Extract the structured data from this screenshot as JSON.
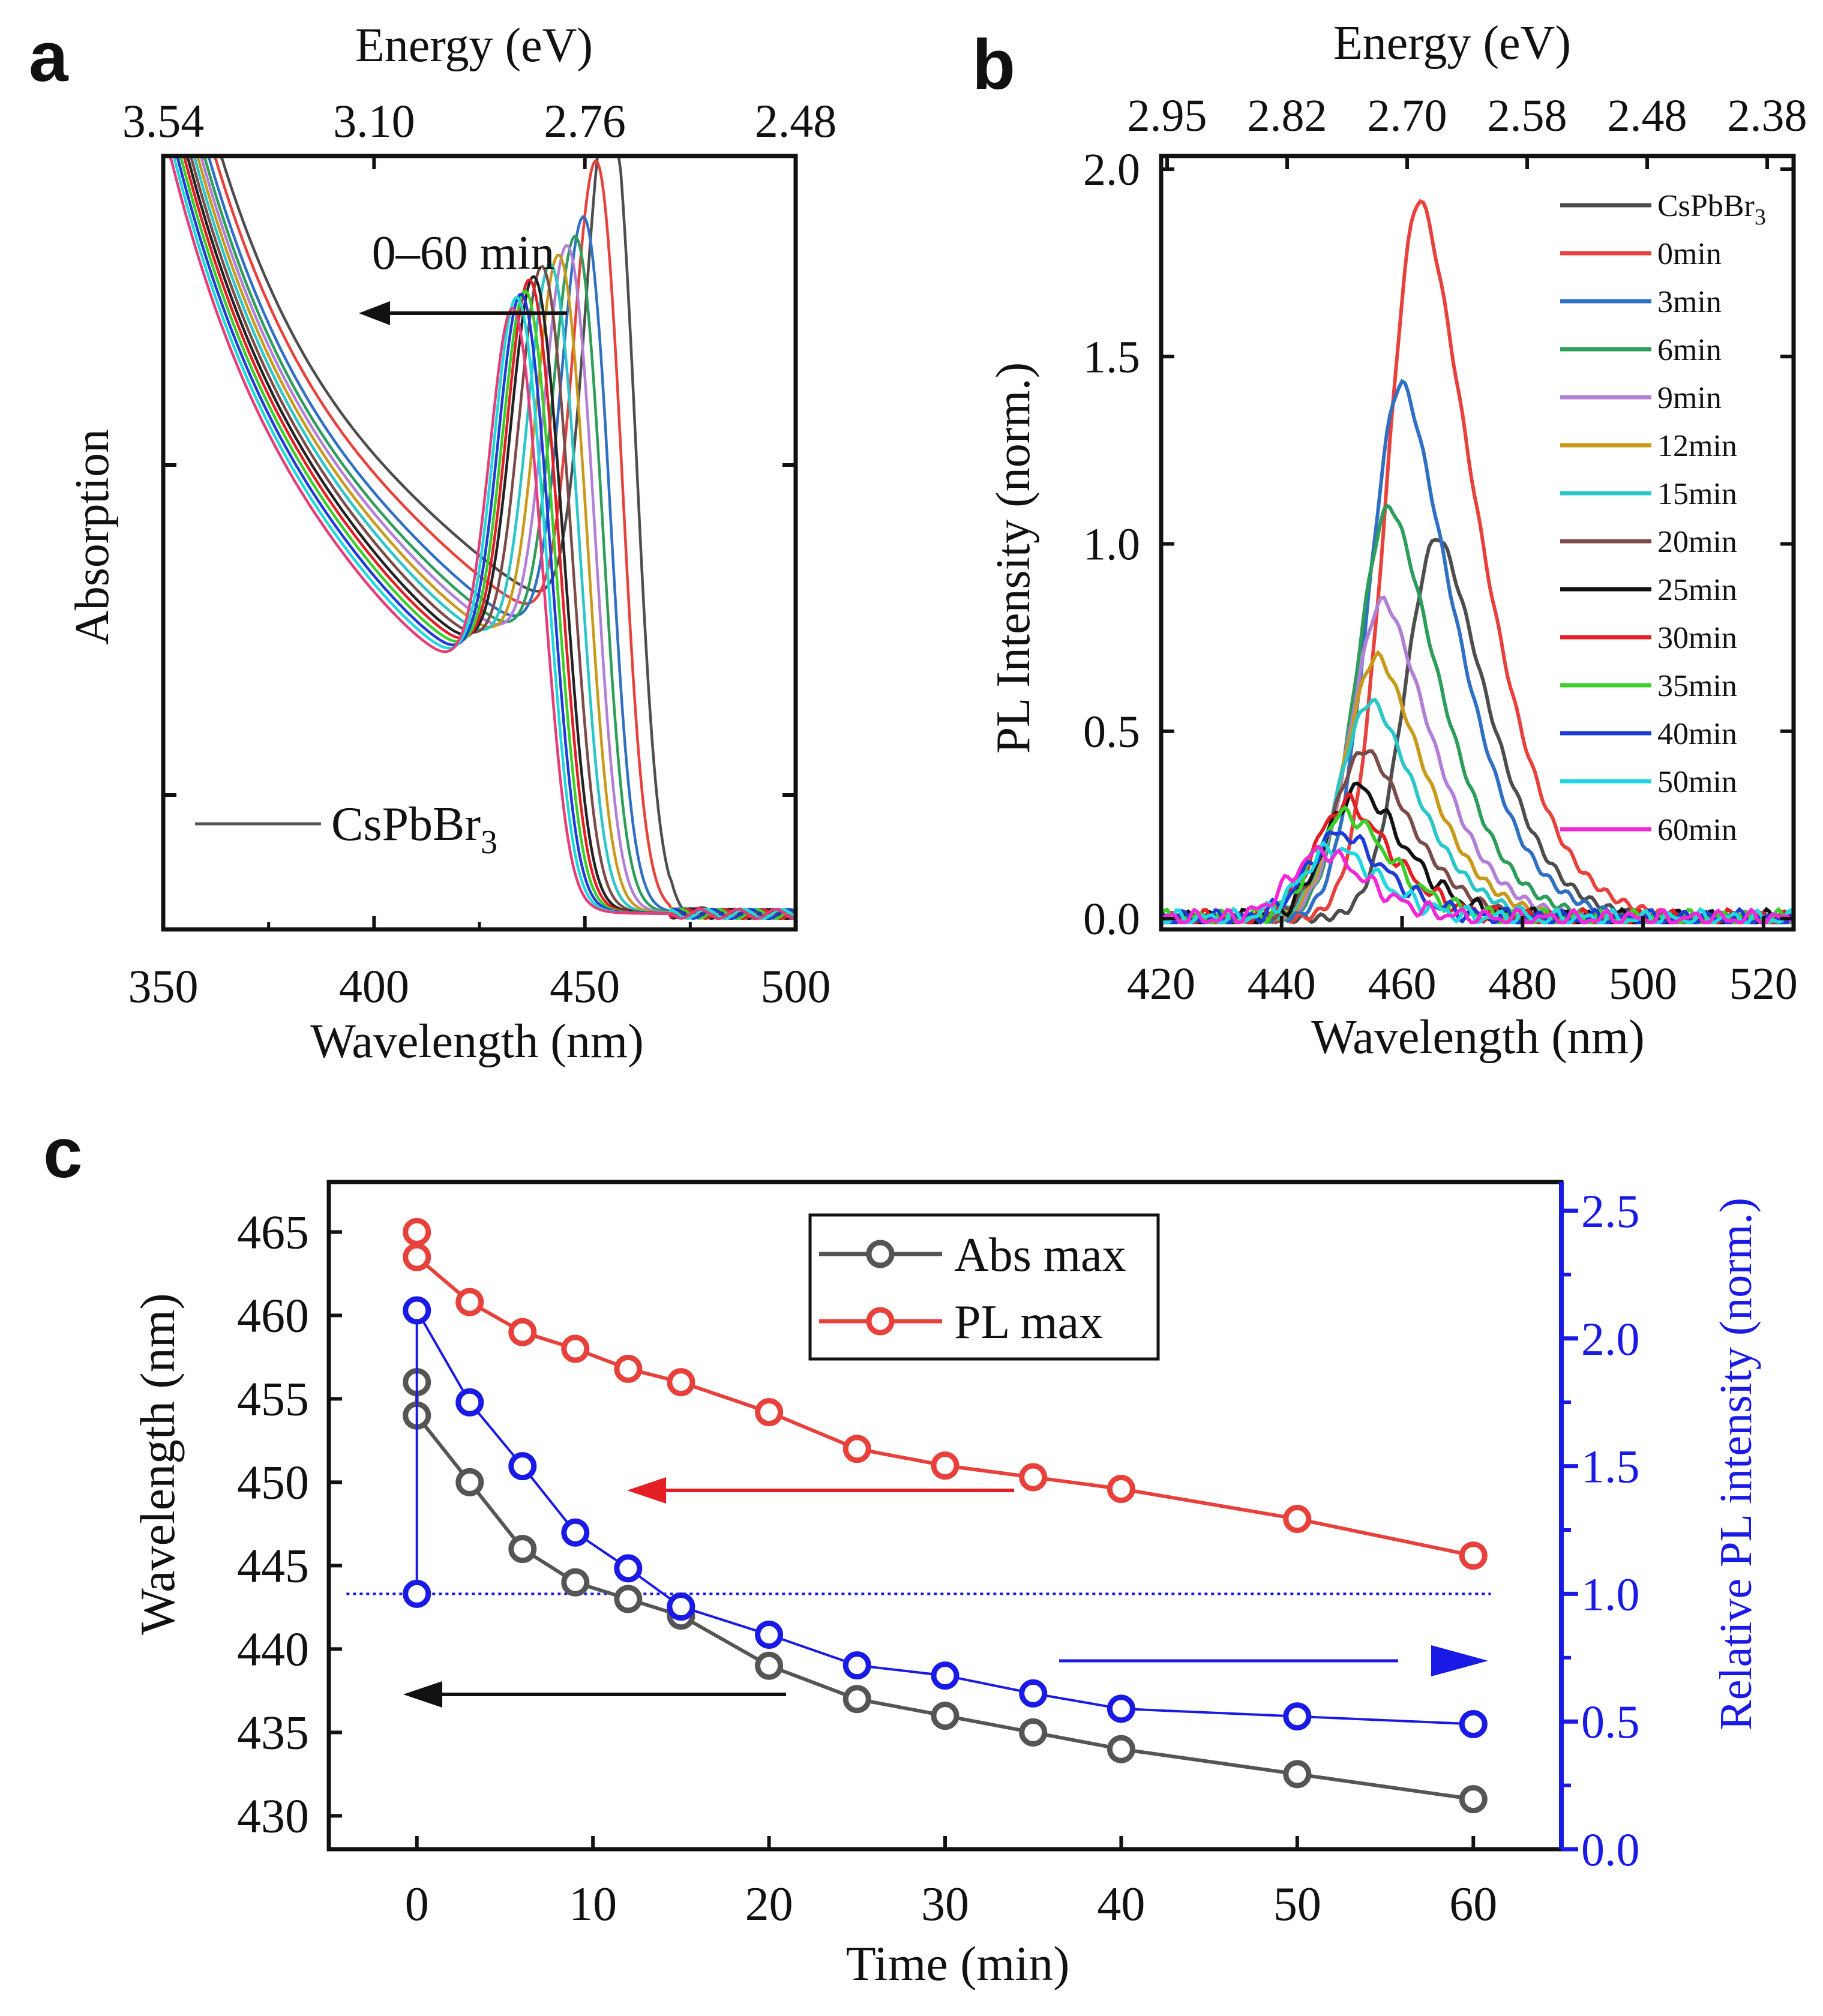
{
  "chart_data": [
    {
      "id": "a",
      "type": "line",
      "panel_label": "a",
      "xlabel": "Wavelength (nm)",
      "ylabel": "Absorption",
      "top_axis_label": "Energy (eV)",
      "xlim": [
        350,
        500
      ],
      "ylim": [
        0,
        1
      ],
      "x_ticks": [
        350,
        400,
        450,
        500
      ],
      "x_tick_labels": [
        "350",
        "400",
        "450",
        "500"
      ],
      "top_tick_labels": [
        "3.54",
        "3.10",
        "2.76",
        "2.48"
      ],
      "y_tick_labels": [],
      "annotation": "0–60 min",
      "legend": {
        "name": "CsPbBr",
        "subscript": "3",
        "color": "#555555"
      },
      "series": [
        {
          "name": "CsPbBr3",
          "color": "#4d4d4d",
          "peak": 456,
          "height": 0.7,
          "dip": 0.4,
          "edge": 463
        },
        {
          "name": "0min",
          "color": "#e8413c",
          "peak": 453,
          "height": 0.63,
          "dip": 0.38,
          "edge": 459.5
        },
        {
          "name": "3min",
          "color": "#2f6fc4",
          "peak": 450,
          "height": 0.57,
          "dip": 0.36,
          "edge": 457
        },
        {
          "name": "6min",
          "color": "#2d9d5a",
          "peak": 448,
          "height": 0.55,
          "dip": 0.35,
          "edge": 455.5
        },
        {
          "name": "9min",
          "color": "#b27fd6",
          "peak": 446,
          "height": 0.54,
          "dip": 0.345,
          "edge": 454
        },
        {
          "name": "12min",
          "color": "#c99a1a",
          "peak": 444,
          "height": 0.53,
          "dip": 0.34,
          "edge": 452.5
        },
        {
          "name": "15min",
          "color": "#2ac6c9",
          "peak": 442,
          "height": 0.52,
          "dip": 0.335,
          "edge": 451
        },
        {
          "name": "20min",
          "color": "#7a4b48",
          "peak": 440,
          "height": 0.52,
          "dip": 0.33,
          "edge": 449.5
        },
        {
          "name": "25min",
          "color": "#222222",
          "peak": 438,
          "height": 0.51,
          "dip": 0.325,
          "edge": 448
        },
        {
          "name": "30min",
          "color": "#e31e24",
          "peak": 437,
          "height": 0.51,
          "dip": 0.32,
          "edge": 447
        },
        {
          "name": "35min",
          "color": "#3ccf2a",
          "peak": 436,
          "height": 0.5,
          "dip": 0.315,
          "edge": 446
        },
        {
          "name": "40min",
          "color": "#1d3bd6",
          "peak": 435,
          "height": 0.5,
          "dip": 0.31,
          "edge": 445
        },
        {
          "name": "50min",
          "color": "#1fd9e0",
          "peak": 434,
          "height": 0.5,
          "dip": 0.305,
          "edge": 444
        },
        {
          "name": "60min",
          "color": "#e63c7a",
          "peak": 433,
          "height": 0.49,
          "dip": 0.3,
          "edge": 443
        }
      ]
    },
    {
      "id": "b",
      "type": "line",
      "panel_label": "b",
      "xlabel": "Wavelength (nm)",
      "ylabel": "PL Intensity (norm.)",
      "top_axis_label": "Energy (eV)",
      "xlim": [
        420,
        525
      ],
      "ylim": [
        0,
        2.0
      ],
      "x_ticks": [
        420,
        440,
        460,
        480,
        500,
        520
      ],
      "x_tick_labels": [
        "420",
        "440",
        "460",
        "480",
        "500",
        "520"
      ],
      "top_tick_labels": [
        "2.95",
        "2.82",
        "2.70",
        "2.58",
        "2.48",
        "2.38"
      ],
      "y_ticks": [
        0,
        0.5,
        1.0,
        1.5,
        2.0
      ],
      "y_tick_labels": [
        "0.0",
        "0.5",
        "1.0",
        "1.5",
        "2.0"
      ],
      "series": [
        {
          "name": "CsPbBr",
          "sub": "3",
          "color": "#4d4d4d",
          "peak": 466,
          "height": 1.02
        },
        {
          "name": "0min",
          "color": "#e8413c",
          "peak": 463,
          "height": 1.92
        },
        {
          "name": "3min",
          "color": "#2f6fc4",
          "peak": 460,
          "height": 1.43
        },
        {
          "name": "6min",
          "color": "#2d9d5a",
          "peak": 458,
          "height": 1.1
        },
        {
          "name": "9min",
          "color": "#b27fd6",
          "peak": 457,
          "height": 0.85
        },
        {
          "name": "12min",
          "color": "#c99a1a",
          "peak": 456,
          "height": 0.7
        },
        {
          "name": "15min",
          "color": "#2ac6c9",
          "peak": 455,
          "height": 0.58
        },
        {
          "name": "20min",
          "color": "#7a4b48",
          "peak": 454,
          "height": 0.45
        },
        {
          "name": "25min",
          "color": "#111111",
          "peak": 453,
          "height": 0.35
        },
        {
          "name": "30min",
          "color": "#e31e24",
          "peak": 451,
          "height": 0.31
        },
        {
          "name": "35min",
          "color": "#3ccf2a",
          "peak": 451,
          "height": 0.28
        },
        {
          "name": "40min",
          "color": "#1d3bd6",
          "peak": 450,
          "height": 0.23
        },
        {
          "name": "50min",
          "color": "#1fd9e0",
          "peak": 449,
          "height": 0.19
        },
        {
          "name": "60min",
          "color": "#f028d8",
          "peak": 447,
          "height": 0.18
        }
      ]
    },
    {
      "id": "c",
      "type": "line",
      "panel_label": "c",
      "xlabel": "Time (min)",
      "ylabel": "Wavelength (nm)",
      "ylabel_right": "Relative PL intensity (norm.)",
      "xlim": [
        -5,
        65
      ],
      "ylim": [
        428,
        468
      ],
      "ylim_right": [
        0,
        2.5
      ],
      "x_ticks": [
        0,
        10,
        20,
        30,
        40,
        50,
        60
      ],
      "x_tick_labels": [
        "0",
        "10",
        "20",
        "30",
        "40",
        "50",
        "60"
      ],
      "y_ticks": [
        430,
        435,
        440,
        445,
        450,
        455,
        460,
        465
      ],
      "y_tick_labels": [
        "430",
        "435",
        "440",
        "445",
        "450",
        "455",
        "460",
        "465"
      ],
      "y_ticks_right": [
        0,
        0.5,
        1.0,
        1.5,
        2.0,
        2.5
      ],
      "y_tick_labels_right": [
        "0.0",
        "0.5",
        "1.0",
        "1.5",
        "2.0",
        "2.5"
      ],
      "reference_line_right": 1.0,
      "series": [
        {
          "name": "Abs max",
          "color": "#555555",
          "axis": "left",
          "x": [
            0,
            0,
            3,
            6,
            9,
            12,
            15,
            20,
            25,
            30,
            35,
            40,
            50,
            60
          ],
          "y": [
            456,
            454,
            450,
            446,
            444,
            443,
            442,
            439,
            437,
            436,
            435,
            434,
            432.5,
            431
          ]
        },
        {
          "name": "PL max",
          "color": "#e8413c",
          "axis": "left",
          "x": [
            0,
            0,
            3,
            6,
            9,
            12,
            15,
            20,
            25,
            30,
            35,
            40,
            50,
            60
          ],
          "y": [
            465,
            463.5,
            460.8,
            459,
            458,
            456.8,
            456,
            454.2,
            452,
            451,
            450.3,
            449.6,
            447.8,
            445.6
          ]
        },
        {
          "name": "Relative PL intensity",
          "color": "#1a1ae6",
          "axis": "right",
          "x": [
            0,
            0,
            3,
            6,
            9,
            12,
            15,
            20,
            25,
            30,
            35,
            40,
            50,
            60
          ],
          "y": [
            1.0,
            2.11,
            1.75,
            1.5,
            1.24,
            1.1,
            0.95,
            0.84,
            0.72,
            0.68,
            0.61,
            0.55,
            0.52,
            0.49
          ]
        }
      ],
      "legend": [
        {
          "label": "Abs max",
          "color": "#555555"
        },
        {
          "label": "PL max",
          "color": "#e8413c"
        }
      ]
    }
  ],
  "colors": {
    "axis": "#111111",
    "right_axis": "#1a1ae6"
  }
}
